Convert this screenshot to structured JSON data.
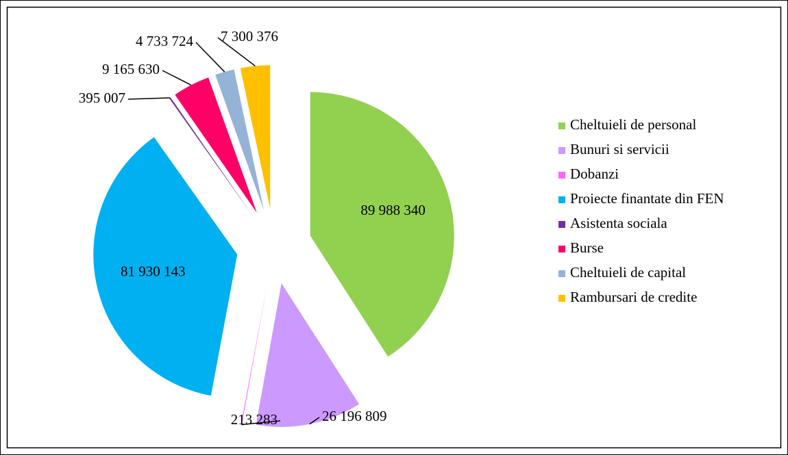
{
  "chart_data": {
    "type": "pie",
    "categories": [
      "Cheltuieli de personal",
      "Bunuri si servicii",
      "Dobanzi",
      "Proiecte finantate din FEN",
      "Asistenta sociala",
      "Burse",
      "Cheltuieli de capital",
      "Rambursari de credite"
    ],
    "values": [
      89988340,
      26196809,
      213283,
      81930143,
      395007,
      9165630,
      4733724,
      7300376
    ],
    "value_labels": [
      "89 988 340",
      "26 196 809",
      "213 283",
      "81 930 143",
      "395 007",
      "9 165 630",
      "4 733 724",
      "7 300 376"
    ],
    "colors": [
      "#92d050",
      "#cc99ff",
      "#ff66ff",
      "#00b0f0",
      "#7030a0",
      "#ff0066",
      "#95b3d7",
      "#ffc000"
    ],
    "legend": "right"
  }
}
